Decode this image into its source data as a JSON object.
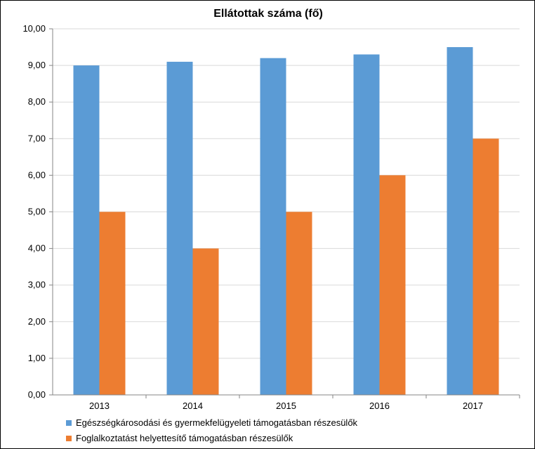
{
  "chart_data": {
    "type": "bar",
    "title": "Ellátottak száma (fő)",
    "categories": [
      "2013",
      "2014",
      "2015",
      "2016",
      "2017"
    ],
    "series": [
      {
        "name": "Egészségkárosodási és gyermekfelügyeleti támogatásban részesülők",
        "values": [
          9.0,
          9.1,
          9.2,
          9.3,
          9.5
        ],
        "color": "#5B9BD5"
      },
      {
        "name": "Foglalkoztatást helyettesítő támogatásban részesülők",
        "values": [
          5.0,
          4.0,
          5.0,
          6.0,
          7.0
        ],
        "color": "#ED7D31"
      }
    ],
    "ylim": [
      0,
      10
    ],
    "yticks": [
      "0,00",
      "1,00",
      "2,00",
      "3,00",
      "4,00",
      "5,00",
      "6,00",
      "7,00",
      "8,00",
      "9,00",
      "10,00"
    ],
    "grid": true,
    "legend": "bottom"
  }
}
